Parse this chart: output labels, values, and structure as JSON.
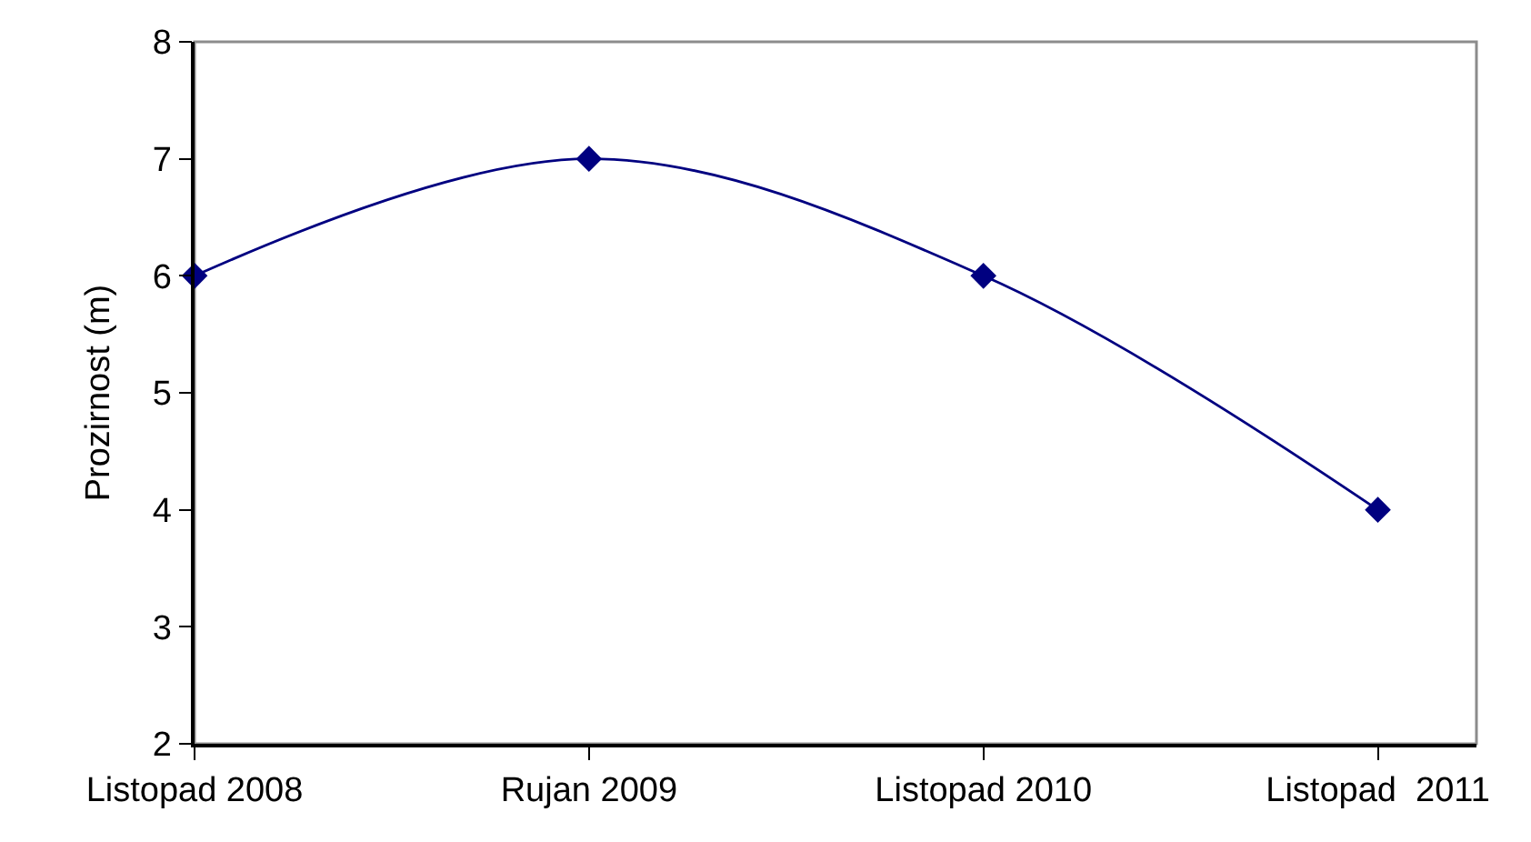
{
  "chart_data": {
    "type": "line",
    "ylabel": "Prozirnost (m)",
    "categories": [
      "Listopad 2008",
      "Rujan 2009",
      "Listopad 2010",
      "Listopad  2011"
    ],
    "series": [
      {
        "color": "#000080",
        "values": [
          6,
          7,
          6,
          4
        ]
      }
    ],
    "ylim": [
      2,
      8
    ],
    "yticks": [
      2,
      3,
      4,
      5,
      6,
      7,
      8
    ],
    "marker": "diamond",
    "line_style": "solid"
  }
}
